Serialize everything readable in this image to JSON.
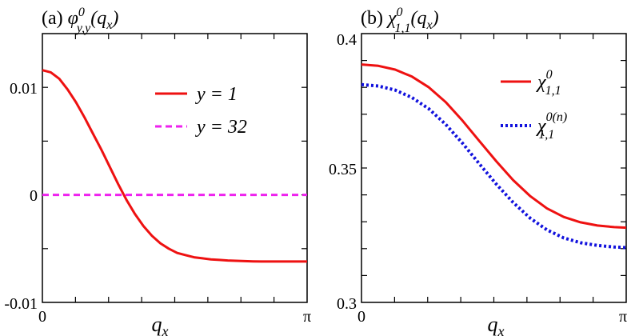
{
  "chart_data": [
    {
      "type": "line",
      "panel_label": "(a)",
      "title_symbol": "φ",
      "title_sup": "0",
      "title_sub": "y,y",
      "title_arg": "(q",
      "title_arg_sub": "x",
      "title_close": ")",
      "xlabel": "q",
      "xlabel_sub": "x",
      "xlim": [
        0,
        3.14159
      ],
      "ylim": [
        -0.01,
        0.015
      ],
      "xticks": [
        {
          "value": 0,
          "label": "0"
        },
        {
          "value": 3.14159,
          "label": "π"
        }
      ],
      "yticks": [
        {
          "value": -0.01,
          "label": "-0.01"
        },
        {
          "value": 0,
          "label": "0"
        },
        {
          "value": 0.01,
          "label": "0.01"
        }
      ],
      "grid": false,
      "legend_placement": "top-right",
      "series": [
        {
          "name": "y = 1",
          "color": "#ee1111",
          "style": "solid",
          "x": [
            0,
            0.1,
            0.2,
            0.3,
            0.4,
            0.5,
            0.6,
            0.7,
            0.8,
            0.9,
            1.0,
            1.1,
            1.2,
            1.3,
            1.4,
            1.5,
            1.6,
            1.7,
            1.8,
            1.9,
            2.0,
            2.1,
            2.2,
            2.3,
            2.4,
            2.5,
            2.6,
            2.7,
            2.8,
            2.9,
            3.0,
            3.14159
          ],
          "y": [
            0.0116,
            0.0114,
            0.0108,
            0.0098,
            0.0086,
            0.0072,
            0.0057,
            0.0042,
            0.0026,
            0.001,
            -0.0005,
            -0.0018,
            -0.0029,
            -0.0038,
            -0.0045,
            -0.005,
            -0.0054,
            -0.0056,
            -0.0058,
            -0.0059,
            -0.006,
            -0.00605,
            -0.0061,
            -0.00613,
            -0.00616,
            -0.00618,
            -0.0062,
            -0.0062,
            -0.0062,
            -0.0062,
            -0.0062,
            -0.0062
          ]
        },
        {
          "name": "y = 32",
          "color": "#ee22ee",
          "style": "dashed",
          "x": [
            0,
            3.14159
          ],
          "y": [
            0,
            0
          ]
        }
      ]
    },
    {
      "type": "line",
      "panel_label": "(b)",
      "title_symbol": "χ",
      "title_sup": "0",
      "title_sub": "1,1",
      "title_arg": "(q",
      "title_arg_sub": "x",
      "title_close": ")",
      "xlabel": "q",
      "xlabel_sub": "x",
      "xlim": [
        0,
        3.14159
      ],
      "ylim": [
        0.3,
        0.4
      ],
      "xticks": [
        {
          "value": 0,
          "label": "0"
        },
        {
          "value": 3.14159,
          "label": "π"
        }
      ],
      "yticks": [
        {
          "value": 0.3,
          "label": "0.3"
        },
        {
          "value": 0.35,
          "label": "0.35"
        },
        {
          "value": 0.4,
          "label": "0.4"
        }
      ],
      "grid": false,
      "legend_placement": "top-right",
      "series": [
        {
          "name_symbol": "χ",
          "name_sup": "0",
          "name_sub": "1,1",
          "color": "#ee1111",
          "style": "solid",
          "x": [
            0,
            0.2,
            0.4,
            0.6,
            0.8,
            1.0,
            1.2,
            1.4,
            1.6,
            1.8,
            2.0,
            2.2,
            2.4,
            2.6,
            2.8,
            3.0,
            3.14159
          ],
          "y": [
            0.3885,
            0.388,
            0.3866,
            0.384,
            0.38,
            0.3745,
            0.3676,
            0.36,
            0.3525,
            0.3455,
            0.3396,
            0.335,
            0.3318,
            0.3298,
            0.3286,
            0.328,
            0.3278
          ]
        },
        {
          "name_symbol": "χ",
          "name_sup": "0(n)",
          "name_sub": "1,1",
          "color": "#1111dd",
          "style": "dotted",
          "x": [
            0,
            0.2,
            0.4,
            0.6,
            0.8,
            1.0,
            1.2,
            1.4,
            1.6,
            1.8,
            2.0,
            2.2,
            2.4,
            2.6,
            2.8,
            3.0,
            3.14159
          ],
          "y": [
            0.381,
            0.3805,
            0.379,
            0.3762,
            0.372,
            0.3662,
            0.3592,
            0.3515,
            0.344,
            0.3372,
            0.3314,
            0.327,
            0.324,
            0.3222,
            0.3212,
            0.3206,
            0.3204
          ]
        }
      ]
    }
  ]
}
